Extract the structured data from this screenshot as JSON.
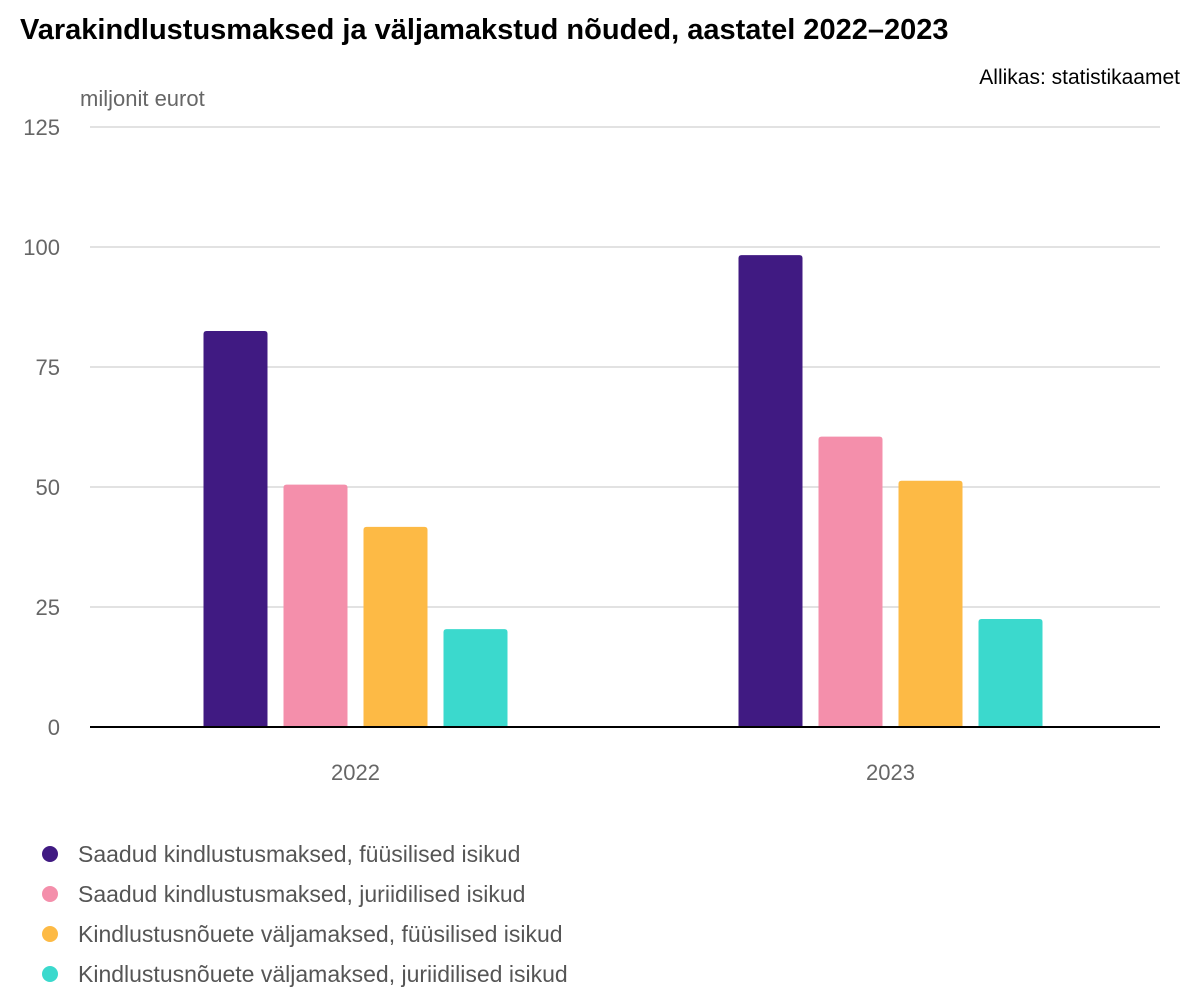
{
  "header": {
    "title": "Varakindlustusmaksed ja väljamakstud nõuded, aastatel 2022–2023",
    "source": "Allikas: statistikaamet",
    "unit": "miljonit eurot"
  },
  "chart_data": {
    "type": "bar",
    "categories": [
      "2022",
      "2023"
    ],
    "series": [
      {
        "name": "Saadud kindlustusmaksed, füüsilised isikud",
        "values": [
          82.5,
          98.3
        ],
        "color": "#401a82"
      },
      {
        "name": "Saadud kindlustusmaksed, juriidilised isikud",
        "values": [
          50.5,
          60.5
        ],
        "color": "#f48fab"
      },
      {
        "name": "Kindlustusnõuete väljamaksed, füüsilised isikud",
        "values": [
          41.7,
          51.3
        ],
        "color": "#fdba45"
      },
      {
        "name": "Kindlustusnõuete väljamaksed, juriidilised isikud",
        "values": [
          20.4,
          22.5
        ],
        "color": "#3bd9cd"
      }
    ],
    "ylabel": "miljonit eurot",
    "ylim": [
      0,
      125
    ],
    "yticks": [
      0,
      25,
      50,
      75,
      100,
      125
    ],
    "grid": true,
    "legend_position": "bottom"
  }
}
